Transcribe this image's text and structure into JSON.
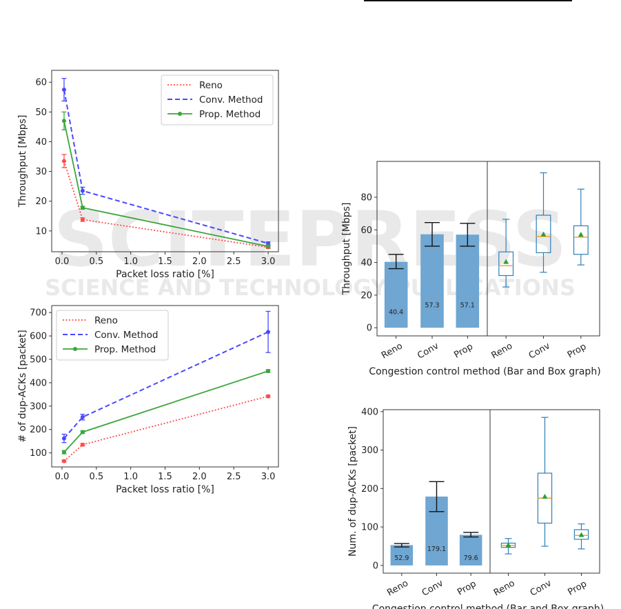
{
  "watermark": {
    "line1": "SCITEPRESS",
    "line2": "SCIENCE AND TECHNOLOGY PUBLICATIONS"
  },
  "colors": {
    "reno": "#ff4b4b",
    "conv": "#4848ff",
    "prop": "#3aa63a",
    "bar": "#6fa6d2",
    "box": "#2c7fb8",
    "mean": "#2ca02c",
    "median": "#ff9922"
  },
  "chart_data": [
    {
      "type": "line",
      "title": "",
      "xlabel": "Packet loss ratio [%]",
      "ylabel": "Throughput [Mbps]",
      "xlim": [
        -0.15,
        3.15
      ],
      "ylim": [
        3,
        64
      ],
      "xticks": [
        0.0,
        0.5,
        1.0,
        1.5,
        2.0,
        2.5,
        3.0
      ],
      "xtick_labels": [
        "0.0",
        "0.5",
        "1.0",
        "1.5",
        "2.0",
        "2.5",
        "3.0"
      ],
      "yticks": [
        10,
        20,
        30,
        40,
        50,
        60
      ],
      "ytick_labels": [
        "10",
        "20",
        "30",
        "40",
        "50",
        "60"
      ],
      "legend_position": "top-right",
      "x": [
        0.03,
        0.3,
        3.0
      ],
      "series": [
        {
          "name": "Reno",
          "style": "dotted",
          "color": "#ff4b4b",
          "values": [
            33.5,
            13.8,
            4.5
          ],
          "err": [
            2.2,
            0.6,
            0.4
          ]
        },
        {
          "name": "Conv. Method",
          "style": "dashed",
          "color": "#4848ff",
          "values": [
            57.5,
            23.5,
            5.8
          ],
          "err": [
            3.8,
            1.2,
            0.5
          ]
        },
        {
          "name": "Prop. Method",
          "style": "solid-marker",
          "color": "#3aa63a",
          "values": [
            47.0,
            17.8,
            4.8
          ],
          "err": [
            3.0,
            0.5,
            0.4
          ]
        }
      ]
    },
    {
      "type": "line",
      "title": "",
      "xlabel": "Packet loss ratio [%]",
      "ylabel": "# of dup-ACKs [packet]",
      "xlim": [
        -0.15,
        3.15
      ],
      "ylim": [
        40,
        730
      ],
      "xticks": [
        0.0,
        0.5,
        1.0,
        1.5,
        2.0,
        2.5,
        3.0
      ],
      "xtick_labels": [
        "0.0",
        "0.5",
        "1.0",
        "1.5",
        "2.0",
        "2.5",
        "3.0"
      ],
      "yticks": [
        100,
        200,
        300,
        400,
        500,
        600,
        700
      ],
      "ytick_labels": [
        "100",
        "200",
        "300",
        "400",
        "500",
        "600",
        "700"
      ],
      "legend_position": "top-left",
      "x": [
        0.03,
        0.3,
        3.0
      ],
      "series": [
        {
          "name": "Reno",
          "style": "dotted",
          "color": "#ff4b4b",
          "values": [
            65,
            135,
            342
          ],
          "err": [
            4,
            5,
            5
          ]
        },
        {
          "name": "Conv. Method",
          "style": "dashed",
          "color": "#4848ff",
          "values": [
            162,
            253,
            617
          ],
          "err": [
            18,
            12,
            88
          ]
        },
        {
          "name": "Prop. Method",
          "style": "solid-marker",
          "color": "#3aa63a",
          "values": [
            103,
            189,
            450
          ],
          "err": [
            7,
            6,
            6
          ]
        }
      ]
    },
    {
      "type": "bar",
      "title": "",
      "xlabel": "Congestion control method (Bar and Box graph)",
      "ylabel": "Throughput [Mbps]",
      "ylim": [
        -5,
        102
      ],
      "yticks": [
        0,
        20,
        40,
        60,
        80
      ],
      "ytick_labels": [
        "0",
        "20",
        "40",
        "60",
        "80"
      ],
      "categories": [
        "Reno",
        "Conv",
        "Prop"
      ],
      "bars": {
        "values": [
          40.4,
          57.3,
          57.1
        ],
        "labels": [
          "40.4",
          "57.3",
          "57.1"
        ],
        "err_low": [
          36.2,
          50.0,
          50.0
        ],
        "err_high": [
          45.0,
          64.5,
          64.0
        ]
      },
      "boxes": [
        {
          "min": 25,
          "q1": 32,
          "median": 38,
          "q3": 46.5,
          "max": 66.5,
          "mean": 40.4
        },
        {
          "min": 34,
          "q1": 46,
          "median": 56,
          "q3": 69,
          "max": 95,
          "mean": 57.3
        },
        {
          "min": 38.5,
          "q1": 45,
          "median": 55.5,
          "q3": 62.5,
          "max": 85,
          "mean": 57.1
        }
      ]
    },
    {
      "type": "bar",
      "title": "",
      "xlabel": "Congestion control method (Bar and Box graph)",
      "ylabel": "Num. of dup-ACKs [packet]",
      "ylim": [
        -20,
        405
      ],
      "yticks": [
        0,
        100,
        200,
        300,
        400
      ],
      "ytick_labels": [
        "0",
        "100",
        "200",
        "300",
        "400"
      ],
      "categories": [
        "Reno",
        "Conv",
        "Prop"
      ],
      "bars": {
        "values": [
          52.9,
          179.1,
          79.6
        ],
        "labels": [
          "52.9",
          "179.1",
          "79.6"
        ],
        "err_low": [
          48,
          140,
          74
        ],
        "err_high": [
          57,
          218,
          86
        ]
      },
      "boxes": [
        {
          "min": 30,
          "q1": 47,
          "median": 52,
          "q3": 58,
          "max": 70,
          "mean": 52.9
        },
        {
          "min": 50,
          "q1": 110,
          "median": 175,
          "q3": 240,
          "max": 385,
          "mean": 179.1
        },
        {
          "min": 43,
          "q1": 68,
          "median": 78,
          "q3": 93,
          "max": 108,
          "mean": 79.6
        }
      ]
    }
  ]
}
